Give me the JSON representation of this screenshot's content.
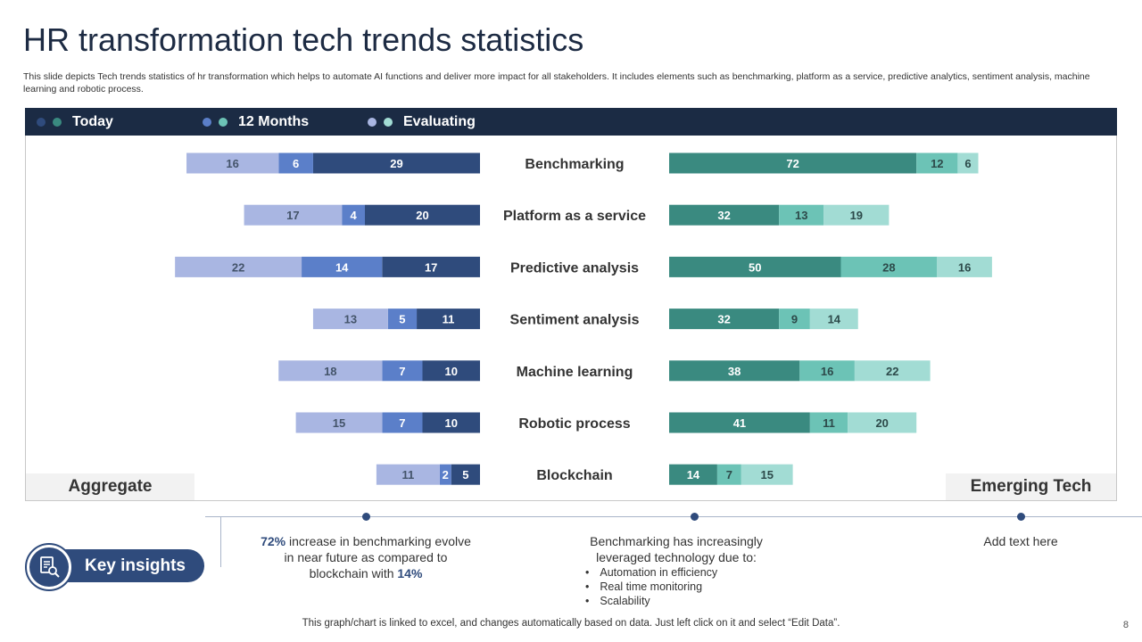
{
  "title": "HR transformation  tech trends statistics",
  "subtitle": "This slide depicts Tech trends statistics of hr transformation which helps to automate AI functions and deliver more impact for all stakeholders. It includes elements such as benchmarking, platform as a service, predictive analytics, sentiment analysis, machine learning and robotic process.",
  "legend": [
    {
      "label": "Today",
      "dot1": "#2f4b7c",
      "dot2": "#3a8a80"
    },
    {
      "label": "12 Months",
      "dot1": "#5b7fc9",
      "dot2": "#6cc3b6"
    },
    {
      "label": "Evaluating",
      "dot1": "#a9b6e2",
      "dot2": "#a2dcd4"
    }
  ],
  "left_label": "Aggregate",
  "right_label": "Emerging Tech",
  "chart_data": {
    "type": "bar",
    "orientation": "horizontal-diverging",
    "categories": [
      "Benchmarking",
      "Platform as a service",
      "Predictive analysis",
      "Sentiment analysis",
      "Machine learning",
      "Robotic process",
      "Blockchain"
    ],
    "aggregate": [
      {
        "name": "Today",
        "values": [
          29,
          20,
          17,
          11,
          10,
          10,
          5
        ],
        "color": "#2f4b7c"
      },
      {
        "name": "12 Months",
        "values": [
          6,
          4,
          14,
          5,
          7,
          7,
          2
        ],
        "color": "#5b7fc9"
      },
      {
        "name": "Evaluating",
        "values": [
          16,
          17,
          22,
          13,
          18,
          15,
          11
        ],
        "color": "#a9b6e2"
      }
    ],
    "emerging_tech": [
      {
        "name": "Today",
        "values": [
          72,
          32,
          50,
          32,
          38,
          41,
          14
        ],
        "color": "#3a8a80"
      },
      {
        "name": "12 Months",
        "values": [
          12,
          13,
          28,
          9,
          16,
          11,
          7
        ],
        "color": "#6cc3b6"
      },
      {
        "name": "Evaluating",
        "values": [
          6,
          19,
          16,
          14,
          22,
          20,
          15
        ],
        "color": "#a2dcd4"
      }
    ]
  },
  "key_insights": {
    "label": "Key insights",
    "item1": {
      "pct1": "72%",
      "text1": " increase in benchmarking evolve in near future as compared to blockchain with ",
      "pct2": "14%"
    },
    "item2": {
      "intro": "Benchmarking has increasingly leveraged technology due to:",
      "bullets": [
        "Automation in efficiency",
        "Real time monitoring",
        "Scalability"
      ]
    },
    "item3": {
      "text": "Add text here"
    }
  },
  "footer": "This graph/chart is linked to excel,  and changes automatically based on data. Just left click on it and select “Edit Data”.",
  "page_number": "8"
}
